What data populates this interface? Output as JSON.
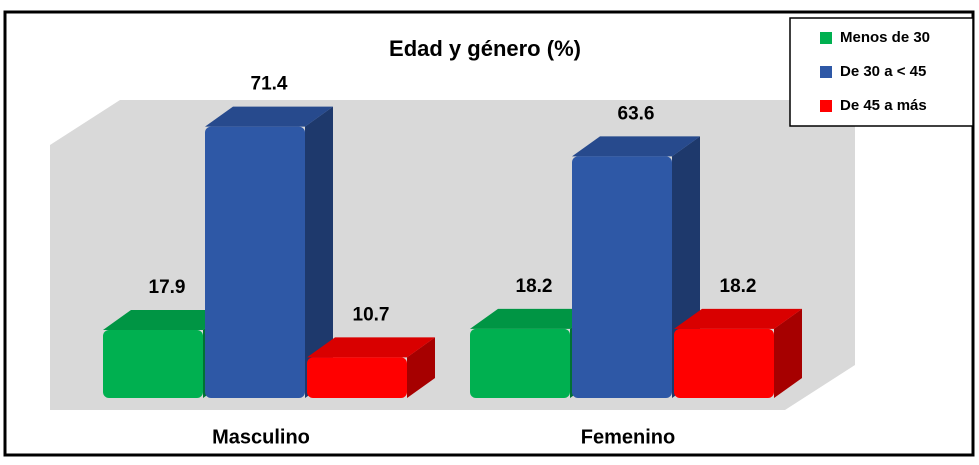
{
  "chart_data": {
    "type": "bar3d",
    "title": "Edad y género (%)",
    "categories": [
      "Masculino",
      "Femenino"
    ],
    "series": [
      {
        "name": "Menos de 30",
        "color": "#00b050",
        "values": [
          17.9,
          18.2
        ]
      },
      {
        "name": "De 30 a < 45",
        "color": "#2e58a6",
        "values": [
          71.4,
          63.6
        ]
      },
      {
        "name": "De 45 a más",
        "color": "#ff0000",
        "values": [
          10.7,
          18.2
        ]
      }
    ],
    "legend": "top-right"
  }
}
